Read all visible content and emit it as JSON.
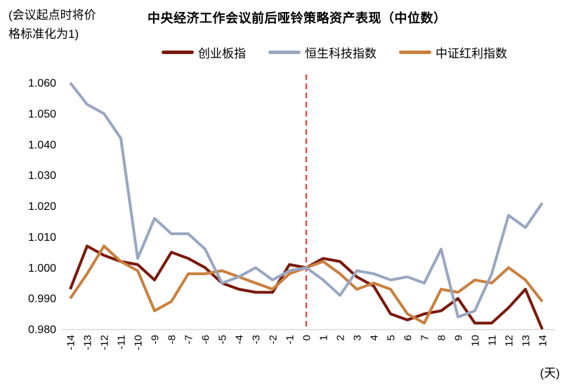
{
  "annotation": {
    "line1": "(会议起点时将价",
    "line2": "格标准化为1)"
  },
  "title": "中央经济工作会议前后哑铃策略资产表现（中位数）",
  "legend": {
    "items": [
      {
        "id": "cyb",
        "label": "创业板指",
        "color": "#7A190B"
      },
      {
        "id": "hstech",
        "label": "恒生科技指数",
        "color": "#9AA7C2"
      },
      {
        "id": "dividend",
        "label": "中证红利指数",
        "color": "#C9803F"
      }
    ]
  },
  "chart_data": {
    "type": "line",
    "title": "中央经济工作会议前后哑铃策略资产表现（中位数）",
    "xlabel": "(天)",
    "ylabel": "(会议起点时将价格标准化为1)",
    "x": [
      -14,
      -13,
      -12,
      -11,
      -10,
      -9,
      -8,
      -7,
      -6,
      -5,
      -4,
      -3,
      -2,
      -1,
      0,
      1,
      2,
      3,
      4,
      5,
      6,
      7,
      8,
      9,
      10,
      11,
      12,
      13,
      14
    ],
    "x_unit_label": "(天)",
    "series": [
      {
        "id": "cyb",
        "name": "创业板指",
        "color": "#7A190B",
        "values": [
          0.993,
          1.007,
          1.004,
          1.002,
          1.001,
          0.996,
          1.005,
          1.003,
          1.0,
          0.995,
          0.993,
          0.992,
          0.992,
          1.001,
          1.0,
          1.003,
          1.002,
          0.997,
          0.994,
          0.985,
          0.983,
          0.985,
          0.986,
          0.99,
          0.982,
          0.982,
          0.987,
          0.993,
          0.98
        ]
      },
      {
        "id": "dividend",
        "name": "中证红利指数",
        "color": "#C9803F",
        "values": [
          0.99,
          0.998,
          1.007,
          1.002,
          0.999,
          0.986,
          0.989,
          0.998,
          0.998,
          0.999,
          0.997,
          0.995,
          0.993,
          0.998,
          1.0,
          1.002,
          0.998,
          0.993,
          0.995,
          0.993,
          0.985,
          0.982,
          0.993,
          0.992,
          0.996,
          0.995,
          1.0,
          0.996,
          0.989
        ]
      },
      {
        "id": "hstech",
        "name": "恒生科技指数",
        "color": "#9AA7C2",
        "values": [
          1.06,
          1.053,
          1.05,
          1.042,
          1.003,
          1.016,
          1.011,
          1.011,
          1.006,
          0.995,
          0.997,
          1.0,
          0.996,
          0.999,
          1.0,
          0.996,
          0.991,
          0.999,
          0.998,
          0.996,
          0.997,
          0.995,
          1.006,
          0.984,
          0.986,
          0.998,
          1.017,
          1.013,
          1.021
        ]
      }
    ],
    "ylim": [
      0.98,
      1.06
    ],
    "yticks": [
      1.06,
      1.05,
      1.04,
      1.03,
      1.02,
      1.01,
      1.0,
      0.99,
      0.98
    ],
    "ytick_decimals": 3,
    "event_line": {
      "x": 0,
      "color": "#FB3A3A",
      "style": "dashed"
    },
    "grid": false,
    "legend_position": "top",
    "axis_color": "#D9D9D9"
  }
}
